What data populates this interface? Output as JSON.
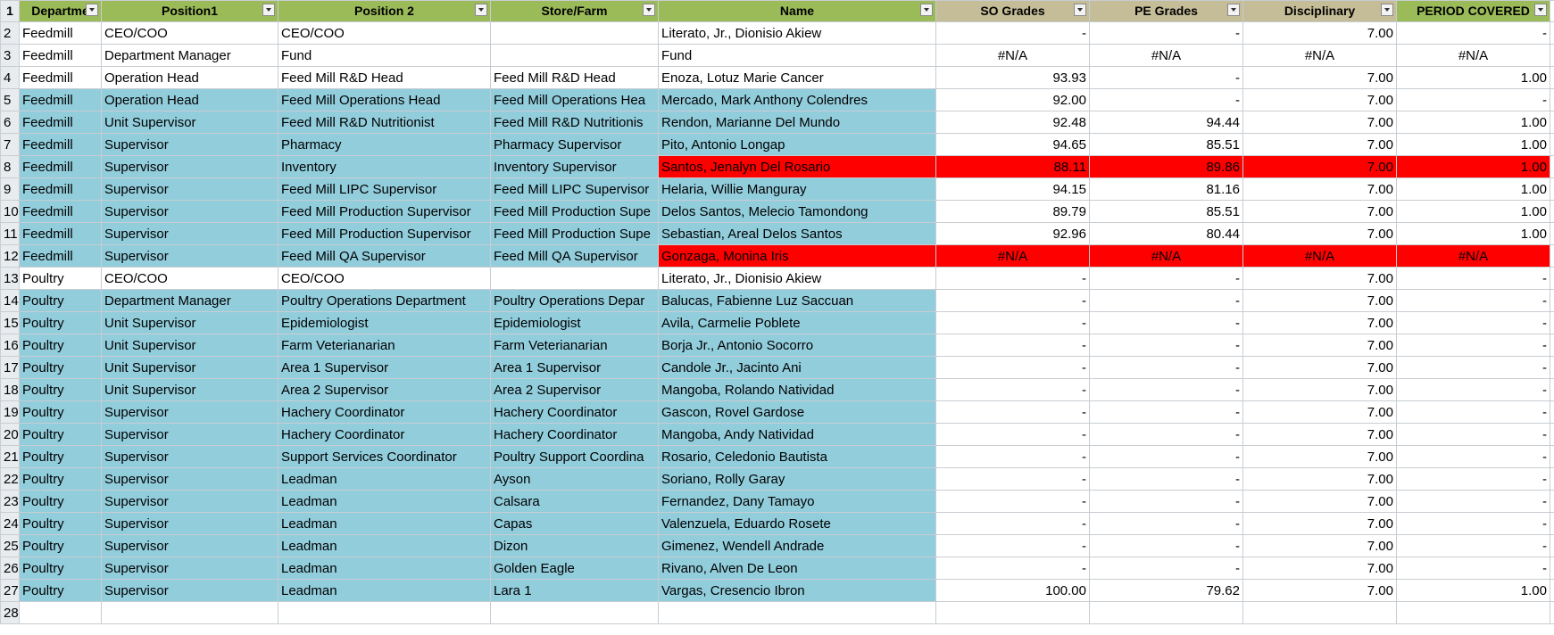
{
  "columns": [
    "Departme",
    "Position1",
    "Position 2",
    "Store/Farm",
    "Name",
    "SO Grades",
    "PE Grades",
    "Disciplinary",
    "PERIOD COVERED"
  ],
  "rows": [
    {
      "n": "1",
      "c": [
        "Departme",
        "Position1",
        "Position 2",
        "Store/Farm",
        "Name",
        "SO Grades",
        "PE Grades",
        "Disciplinary",
        "PERIOD COVERED"
      ]
    },
    {
      "n": "2",
      "c": [
        "Feedmill",
        "CEO/COO",
        "CEO/COO",
        "",
        "Literato, Jr., Dionisio  Akiew",
        "-",
        "-",
        "7.00",
        "-"
      ]
    },
    {
      "n": "3",
      "c": [
        "Feedmill",
        "Department Manager",
        "Fund",
        "",
        "Fund",
        "#N/A",
        "#N/A",
        "#N/A",
        "#N/A"
      ]
    },
    {
      "n": "4",
      "c": [
        "Feedmill",
        "Operation Head",
        "Feed Mill R&D Head",
        "Feed Mill R&D Head",
        "Enoza, Lotuz Marie  Cancer",
        "93.93",
        "-",
        "7.00",
        "1.00"
      ]
    },
    {
      "n": "5",
      "c": [
        "Feedmill",
        "Operation Head",
        "Feed Mill Operations Head",
        "Feed Mill Operations Hea",
        "Mercado, Mark Anthony  Colendres",
        "92.00",
        "-",
        "7.00",
        "-"
      ]
    },
    {
      "n": "6",
      "c": [
        "Feedmill",
        "Unit Supervisor",
        "Feed Mill R&D Nutritionist",
        "Feed Mill R&D Nutritionis",
        "Rendon, Marianne  Del Mundo",
        "92.48",
        "94.44",
        "7.00",
        "1.00"
      ]
    },
    {
      "n": "7",
      "c": [
        "Feedmill",
        "Supervisor",
        "Pharmacy",
        "Pharmacy Supervisor",
        "Pito, Antonio  Longap",
        "94.65",
        "85.51",
        "7.00",
        "1.00"
      ]
    },
    {
      "n": "8",
      "c": [
        "Feedmill",
        "Supervisor",
        "Inventory",
        "Inventory Supervisor",
        "Santos, Jenalyn  Del Rosario",
        "88.11",
        "89.86",
        "7.00",
        "1.00"
      ]
    },
    {
      "n": "9",
      "c": [
        "Feedmill",
        "Supervisor",
        "Feed Mill LIPC Supervisor",
        "Feed Mill LIPC Supervisor",
        "Helaria, Willie  Manguray",
        "94.15",
        "81.16",
        "7.00",
        "1.00"
      ]
    },
    {
      "n": "10",
      "c": [
        "Feedmill",
        "Supervisor",
        "Feed Mill Production Supervisor",
        "Feed Mill Production Supe",
        "Delos Santos, Melecio  Tamondong",
        "89.79",
        "85.51",
        "7.00",
        "1.00"
      ]
    },
    {
      "n": "11",
      "c": [
        "Feedmill",
        "Supervisor",
        "Feed Mill Production Supervisor",
        "Feed Mill Production Supe",
        "Sebastian, Areal  Delos Santos",
        "92.96",
        "80.44",
        "7.00",
        "1.00"
      ]
    },
    {
      "n": "12",
      "c": [
        "Feedmill",
        "Supervisor",
        "Feed Mill QA Supervisor",
        "Feed Mill QA Supervisor",
        "Gonzaga, Monina Iris",
        "#N/A",
        "#N/A",
        "#N/A",
        "#N/A"
      ]
    },
    {
      "n": "13",
      "c": [
        "Poultry",
        "CEO/COO",
        "CEO/COO",
        "",
        "Literato, Jr., Dionisio  Akiew",
        "-",
        "-",
        "7.00",
        "-"
      ]
    },
    {
      "n": "14",
      "c": [
        "Poultry",
        "Department Manager",
        "Poultry Operations Department",
        "Poultry Operations Depar",
        "Balucas, Fabienne Luz  Saccuan",
        "-",
        "-",
        "7.00",
        "-"
      ]
    },
    {
      "n": "15",
      "c": [
        "Poultry",
        "Unit Supervisor",
        "Epidemiologist",
        "Epidemiologist",
        "Avila, Carmelie  Poblete",
        "-",
        "-",
        "7.00",
        "-"
      ]
    },
    {
      "n": "16",
      "c": [
        "Poultry",
        "Unit Supervisor",
        "Farm Veterianarian",
        "Farm Veterianarian",
        "Borja Jr., Antonio  Socorro",
        "-",
        "-",
        "7.00",
        "-"
      ]
    },
    {
      "n": "17",
      "c": [
        "Poultry",
        "Unit Supervisor",
        "Area 1 Supervisor",
        "Area 1 Supervisor",
        "Candole Jr., Jacinto  Ani",
        "-",
        "-",
        "7.00",
        "-"
      ]
    },
    {
      "n": "18",
      "c": [
        "Poultry",
        "Unit Supervisor",
        "Area 2 Supervisor",
        "Area 2 Supervisor",
        "Mangoba, Rolando  Natividad",
        "-",
        "-",
        "7.00",
        "-"
      ]
    },
    {
      "n": "19",
      "c": [
        "Poultry",
        "Supervisor",
        "Hachery Coordinator",
        "Hachery Coordinator",
        "Gascon, Rovel  Gardose",
        "-",
        "-",
        "7.00",
        "-"
      ]
    },
    {
      "n": "20",
      "c": [
        "Poultry",
        "Supervisor",
        "Hachery Coordinator",
        "Hachery Coordinator",
        "Mangoba, Andy  Natividad",
        "-",
        "-",
        "7.00",
        "-"
      ]
    },
    {
      "n": "21",
      "c": [
        "Poultry",
        "Supervisor",
        "Support Services Coordinator",
        "Poultry Support Coordina",
        "Rosario, Celedonio  Bautista",
        "-",
        "-",
        "7.00",
        "-"
      ]
    },
    {
      "n": "22",
      "c": [
        "Poultry",
        "Supervisor",
        "Leadman",
        "Ayson",
        "Soriano, Rolly  Garay",
        "-",
        "-",
        "7.00",
        "-"
      ]
    },
    {
      "n": "23",
      "c": [
        "Poultry",
        "Supervisor",
        "Leadman",
        "Calsara",
        "Fernandez, Dany  Tamayo",
        "-",
        "-",
        "7.00",
        "-"
      ]
    },
    {
      "n": "24",
      "c": [
        "Poultry",
        "Supervisor",
        "Leadman",
        "Capas",
        "Valenzuela, Eduardo  Rosete",
        "-",
        "-",
        "7.00",
        "-"
      ]
    },
    {
      "n": "25",
      "c": [
        "Poultry",
        "Supervisor",
        "Leadman",
        "Dizon",
        "Gimenez, Wendell  Andrade",
        "-",
        "-",
        "7.00",
        "-"
      ]
    },
    {
      "n": "26",
      "c": [
        "Poultry",
        "Supervisor",
        "Leadman",
        "Golden Eagle",
        "Rivano, Alven  De Leon",
        "-",
        "-",
        "7.00",
        "-"
      ]
    },
    {
      "n": "27",
      "c": [
        "Poultry",
        "Supervisor",
        "Leadman",
        "Lara 1",
        "Vargas, Cresencio  Ibron",
        "100.00",
        "79.62",
        "7.00",
        "1.00"
      ]
    },
    {
      "n": "28",
      "c": [
        "",
        "",
        "",
        "",
        "",
        "",
        "",
        "",
        ""
      ]
    }
  ],
  "colors": {
    "header_green": "#9bbb59",
    "header_tan": "#c4bd97",
    "row_teal": "#92cddc",
    "row_white": "#ffffff",
    "row_red_highlight": "#ff0000",
    "gridline": "#c8cdd2"
  },
  "icons": {
    "filter_dropdown": "chevron-down-icon"
  }
}
